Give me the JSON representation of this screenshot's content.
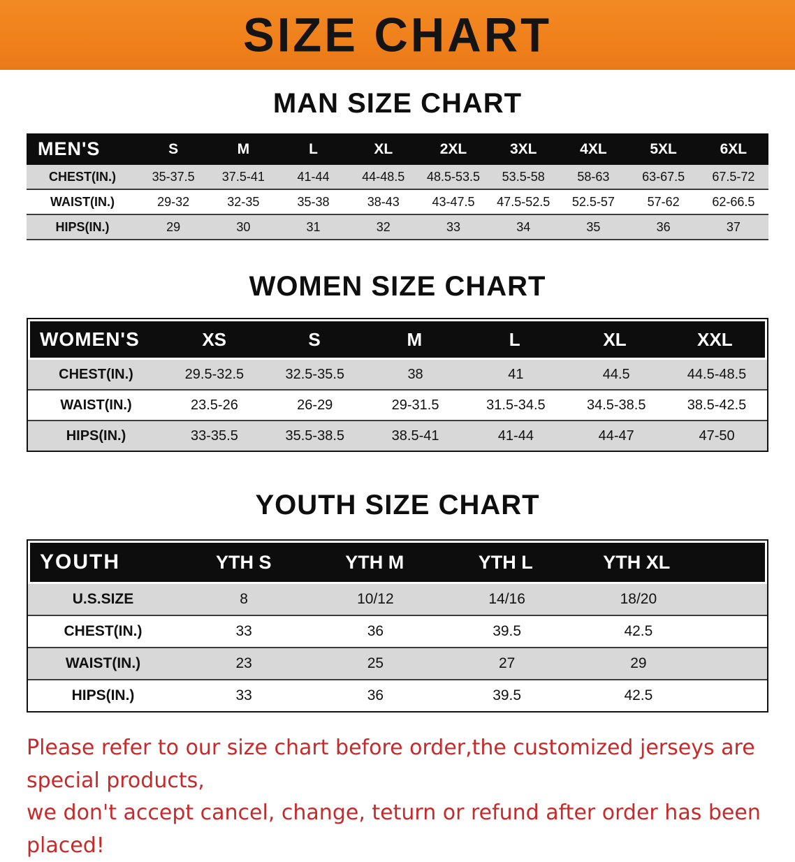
{
  "banner": {
    "title": "SIZE CHART"
  },
  "man": {
    "title": "MAN SIZE CHART",
    "corner": "MEN'S",
    "sizes": [
      "S",
      "M",
      "L",
      "XL",
      "2XL",
      "3XL",
      "4XL",
      "5XL",
      "6XL"
    ],
    "rows": [
      {
        "label": "CHEST(IN.)",
        "v": [
          "35-37.5",
          "37.5-41",
          "41-44",
          "44-48.5",
          "48.5-53.5",
          "53.5-58",
          "58-63",
          "63-67.5",
          "67.5-72"
        ]
      },
      {
        "label": "WAIST(IN.)",
        "v": [
          "29-32",
          "32-35",
          "35-38",
          "38-43",
          "43-47.5",
          "47.5-52.5",
          "52.5-57",
          "57-62",
          "62-66.5"
        ]
      },
      {
        "label": "HIPS(IN.)",
        "v": [
          "29",
          "30",
          "31",
          "32",
          "33",
          "34",
          "35",
          "36",
          "37"
        ]
      }
    ]
  },
  "women": {
    "title": "WOMEN SIZE CHART",
    "corner": "WOMEN'S",
    "sizes": [
      "XS",
      "S",
      "M",
      "L",
      "XL",
      "XXL"
    ],
    "rows": [
      {
        "label": "CHEST(IN.)",
        "v": [
          "29.5-32.5",
          "32.5-35.5",
          "38",
          "41",
          "44.5",
          "44.5-48.5"
        ]
      },
      {
        "label": "WAIST(IN.)",
        "v": [
          "23.5-26",
          "26-29",
          "29-31.5",
          "31.5-34.5",
          "34.5-38.5",
          "38.5-42.5"
        ]
      },
      {
        "label": "HIPS(IN.)",
        "v": [
          "33-35.5",
          "35.5-38.5",
          "38.5-41",
          "41-44",
          "44-47",
          "47-50"
        ]
      }
    ]
  },
  "youth": {
    "title": "YOUTH SIZE CHART",
    "corner": "YOUTH",
    "sizes": [
      "YTH S",
      "YTH M",
      "YTH L",
      "YTH XL"
    ],
    "rows": [
      {
        "label": "U.S.SIZE",
        "v": [
          "8",
          "10/12",
          "14/16",
          "18/20"
        ]
      },
      {
        "label": "CHEST(IN.)",
        "v": [
          "33",
          "36",
          "39.5",
          "42.5"
        ]
      },
      {
        "label": "WAIST(IN.)",
        "v": [
          "23",
          "25",
          "27",
          "29"
        ]
      },
      {
        "label": "HIPS(IN.)",
        "v": [
          "33",
          "36",
          "39.5",
          "42.5"
        ]
      }
    ]
  },
  "disclaimer": {
    "line1": "Please refer to our size chart before order,the customized jerseys are special products,",
    "line2": "we don't accept cancel, change, teturn or refund after order has been placed!"
  },
  "colors": {
    "banner_orange": "#F0811C",
    "header_black": "#0D0D0D",
    "stripe_gray": "#D8D8D8",
    "disclaimer_red": "#C62A2A"
  }
}
